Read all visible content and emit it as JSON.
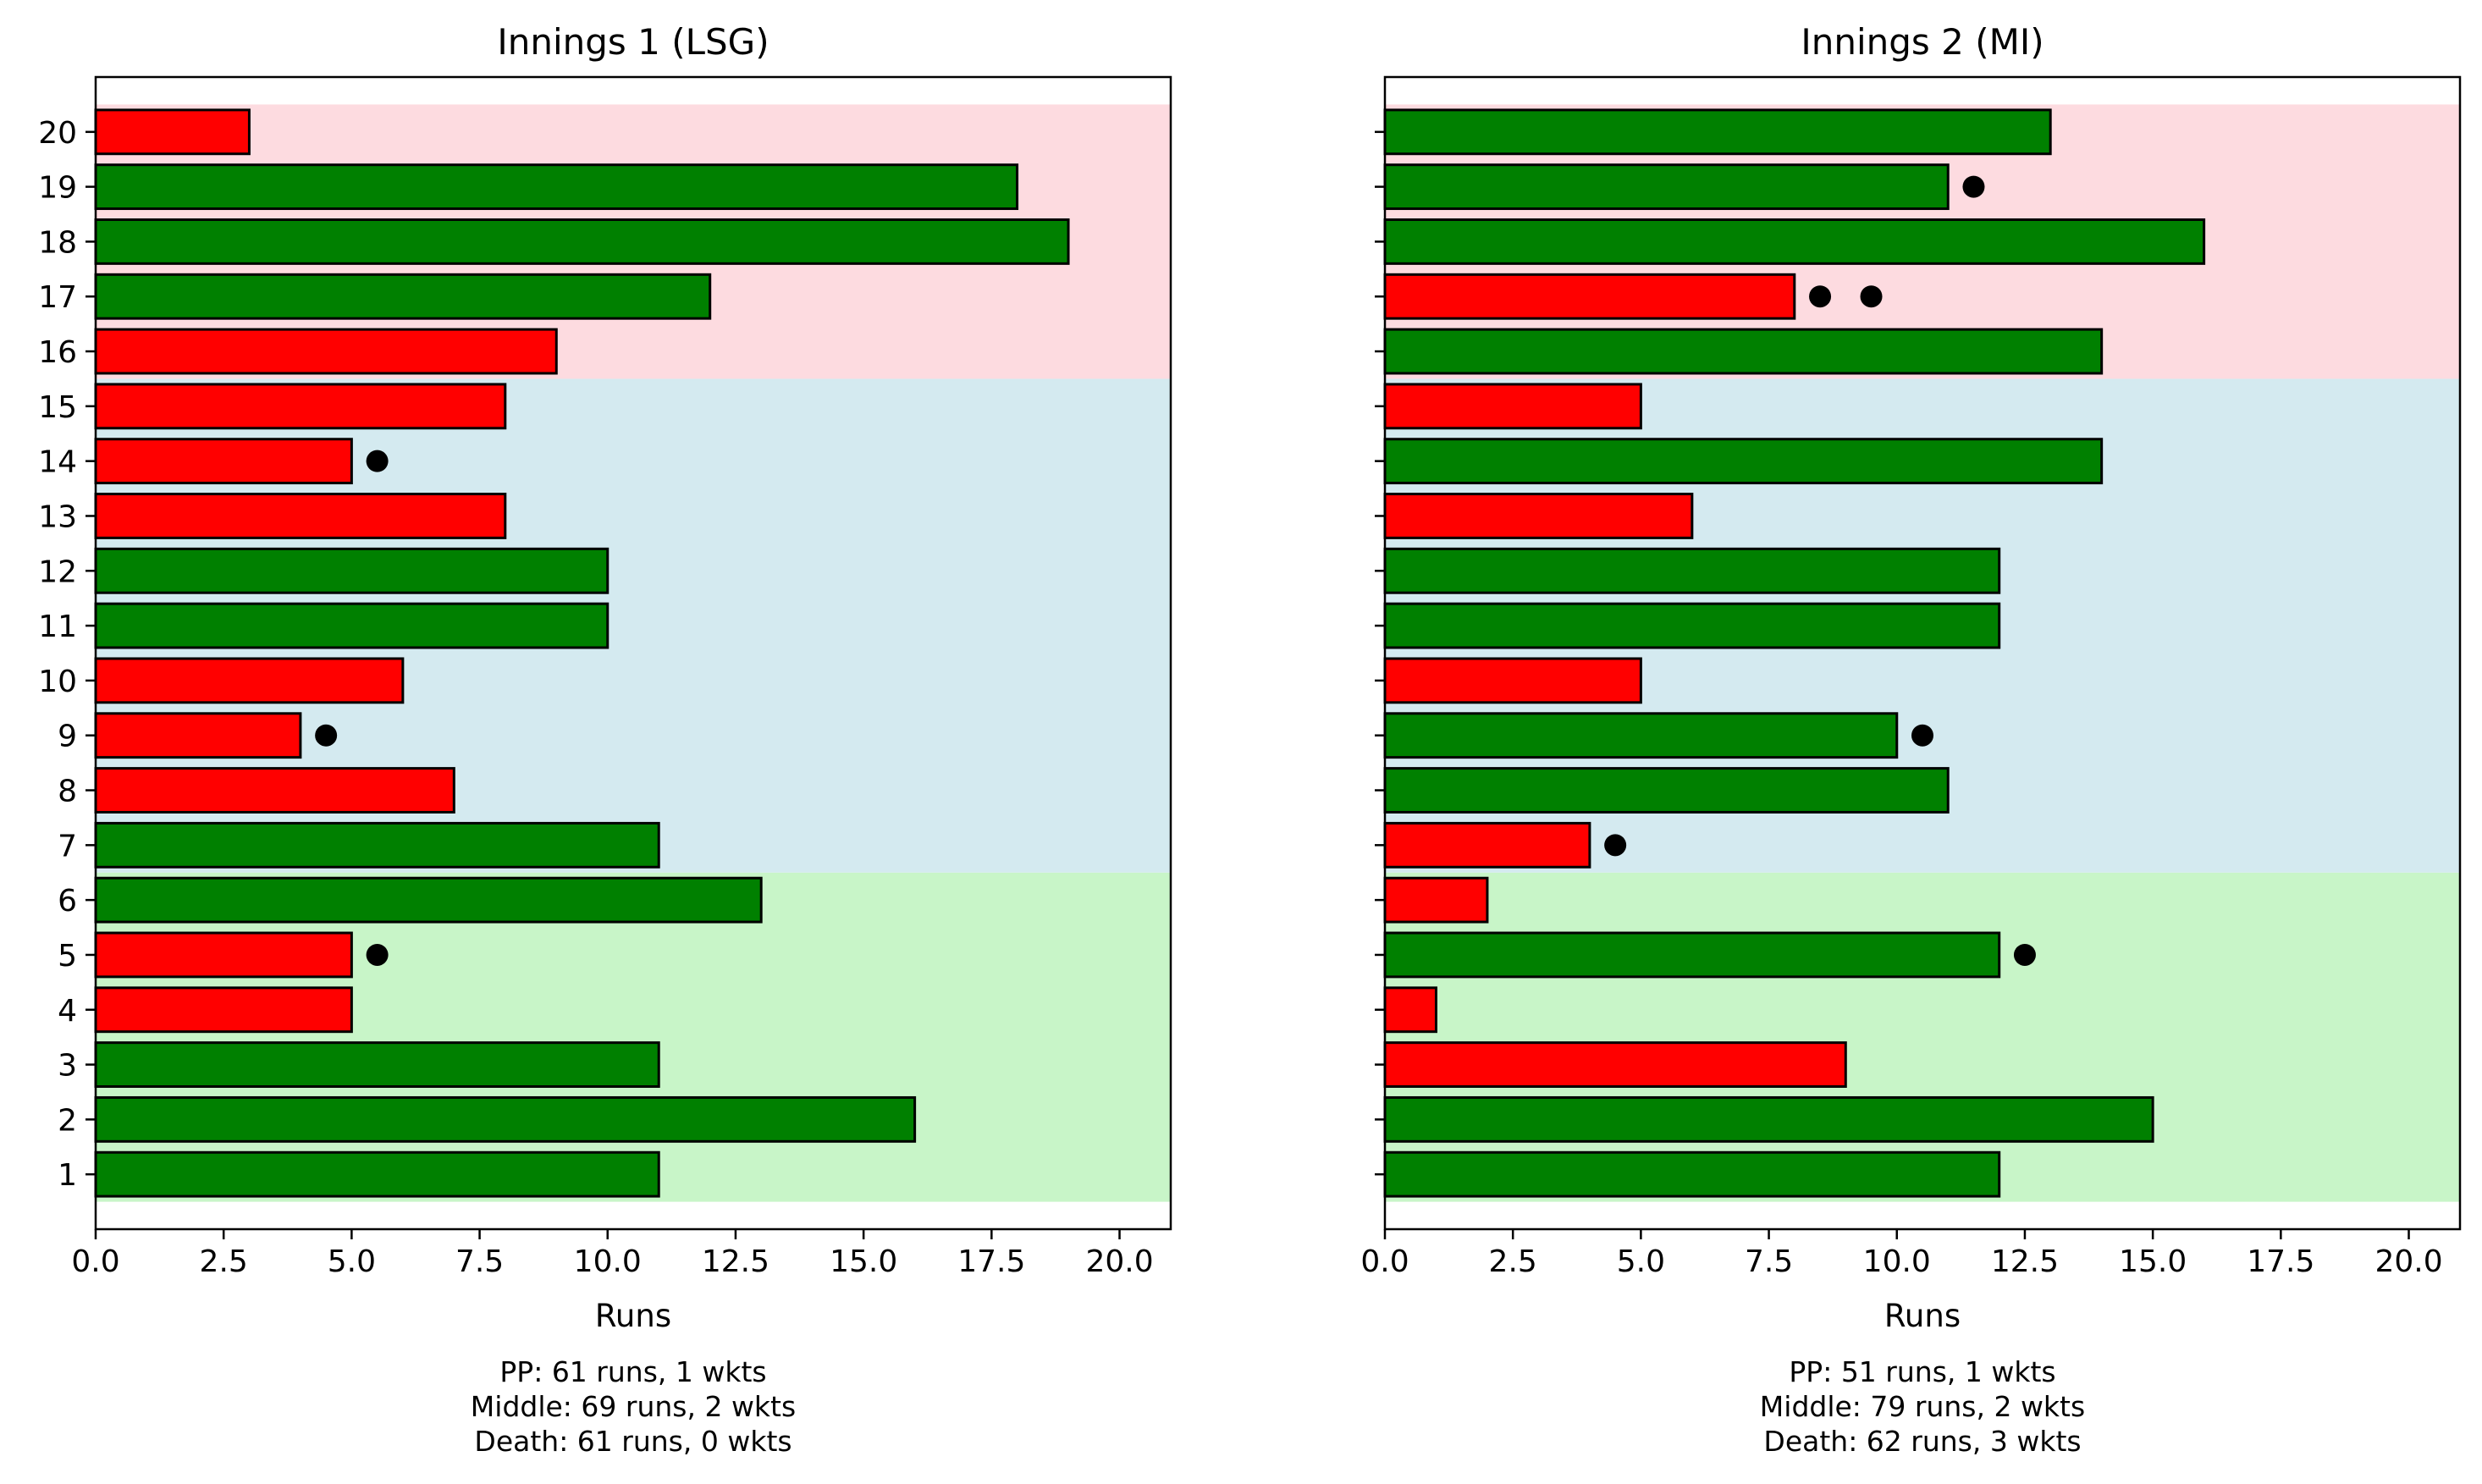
{
  "chart_data": [
    {
      "type": "bar",
      "orientation": "horizontal",
      "title": "Innings 1 (LSG)",
      "xlabel": "Runs",
      "ylabel": "",
      "xlim": [
        0,
        21
      ],
      "ylim": [
        0,
        21
      ],
      "x_ticks": [
        "0.0",
        "2.5",
        "5.0",
        "7.5",
        "10.0",
        "12.5",
        "15.0",
        "17.5",
        "20.0"
      ],
      "y_tick_labels_shown": true,
      "categories": [
        "1",
        "2",
        "3",
        "4",
        "5",
        "6",
        "7",
        "8",
        "9",
        "10",
        "11",
        "12",
        "13",
        "14",
        "15",
        "16",
        "17",
        "18",
        "19",
        "20"
      ],
      "values": [
        11,
        16,
        11,
        5,
        5,
        13,
        11,
        7,
        4,
        6,
        10,
        10,
        8,
        5,
        8,
        9,
        12,
        19,
        18,
        3
      ],
      "wickets": [
        0,
        0,
        0,
        0,
        1,
        0,
        0,
        0,
        1,
        0,
        0,
        0,
        0,
        1,
        0,
        0,
        0,
        0,
        0,
        0
      ],
      "phases": [
        {
          "name": "PP",
          "from_over": 1,
          "to_over": 6,
          "color": "#c8f5c8"
        },
        {
          "name": "Middle",
          "from_over": 7,
          "to_over": 15,
          "color": "#d4eaf0"
        },
        {
          "name": "Death",
          "from_over": 16,
          "to_over": 20,
          "color": "#fddbe0"
        }
      ],
      "summary": [
        "PP: 61 runs, 1 wkts",
        "Middle: 69 runs, 2 wkts",
        "Death: 61 runs, 0 wkts"
      ]
    },
    {
      "type": "bar",
      "orientation": "horizontal",
      "title": "Innings 2 (MI)",
      "xlabel": "Runs",
      "ylabel": "",
      "xlim": [
        0,
        21
      ],
      "ylim": [
        0,
        21
      ],
      "x_ticks": [
        "0.0",
        "2.5",
        "5.0",
        "7.5",
        "10.0",
        "12.5",
        "15.0",
        "17.5",
        "20.0"
      ],
      "y_tick_labels_shown": false,
      "categories": [
        "1",
        "2",
        "3",
        "4",
        "5",
        "6",
        "7",
        "8",
        "9",
        "10",
        "11",
        "12",
        "13",
        "14",
        "15",
        "16",
        "17",
        "18",
        "19",
        "20"
      ],
      "values": [
        12,
        15,
        9,
        1,
        12,
        2,
        4,
        11,
        10,
        5,
        12,
        12,
        6,
        14,
        5,
        14,
        8,
        16,
        11,
        13
      ],
      "wickets": [
        0,
        0,
        0,
        0,
        1,
        0,
        1,
        0,
        1,
        0,
        0,
        0,
        0,
        0,
        0,
        0,
        2,
        0,
        1,
        0
      ],
      "phases": [
        {
          "name": "PP",
          "from_over": 1,
          "to_over": 6,
          "color": "#c8f5c8"
        },
        {
          "name": "Middle",
          "from_over": 7,
          "to_over": 15,
          "color": "#d4eaf0"
        },
        {
          "name": "Death",
          "from_over": 16,
          "to_over": 20,
          "color": "#fddbe0"
        }
      ],
      "summary": [
        "PP: 51 runs, 1 wkts",
        "Middle: 79 runs, 2 wkts",
        "Death: 62 runs, 3 wkts"
      ]
    }
  ],
  "colors": {
    "high_scoring_bar": "#008000",
    "low_scoring_bar": "#ff0000",
    "bar_edge": "#000000",
    "wicket_marker": "#000000"
  }
}
